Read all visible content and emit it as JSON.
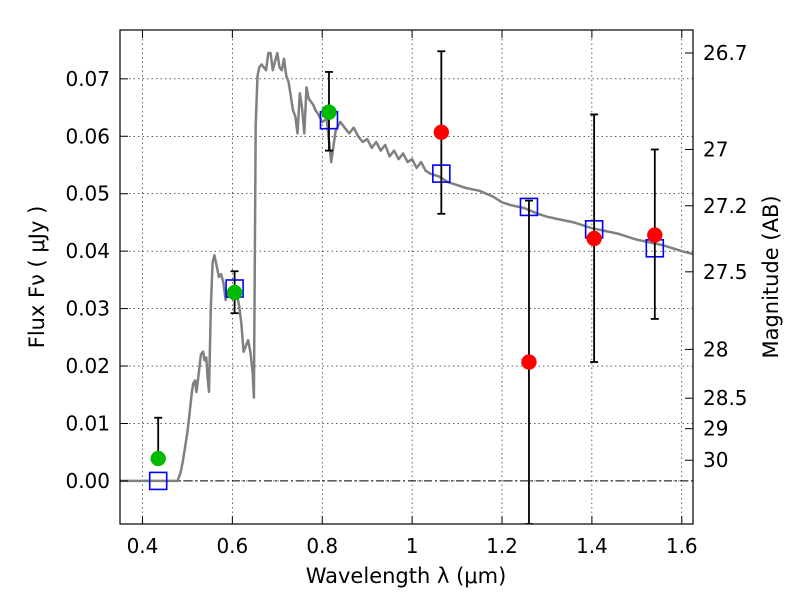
{
  "chart_data": {
    "type": "scatter",
    "xlabel": "Wavelength  λ (μm)",
    "ylabel": "Flux  Fν  ( μJy )",
    "ylabel_right": "Magnitude (AB)",
    "xlim": [
      0.35,
      1.625
    ],
    "ylim": [
      -0.0075,
      0.0785
    ],
    "grid": true,
    "x_ticks": [
      0.4,
      0.6,
      0.8,
      1.0,
      1.2,
      1.4,
      1.6
    ],
    "x_tick_labels": [
      "0.4",
      "0.6",
      "0.8",
      "1",
      "1.2",
      "1.4",
      "1.6"
    ],
    "y_ticks": [
      0.0,
      0.01,
      0.02,
      0.03,
      0.04,
      0.05,
      0.06,
      0.07
    ],
    "y_tick_labels": [
      "0.00",
      "0.01",
      "0.02",
      "0.03",
      "0.04",
      "0.05",
      "0.06",
      "0.07"
    ],
    "right_ticks": [
      {
        "label": "26.7",
        "flux": 0.0745
      },
      {
        "label": "27",
        "flux": 0.0577
      },
      {
        "label": "27.2",
        "flux": 0.0479
      },
      {
        "label": "27.5",
        "flux": 0.0364
      },
      {
        "label": "28",
        "flux": 0.0229
      },
      {
        "label": "28.5",
        "flux": 0.0144
      },
      {
        "label": "29",
        "flux": 0.0091
      },
      {
        "label": "30",
        "flux": 0.0036
      }
    ],
    "colors": {
      "sed": "#808080",
      "observed_detection": "#00bb00",
      "observed_other": "#ff0000",
      "model_square": "#0000ff",
      "errorbar": "#000000"
    },
    "series": [
      {
        "kind": "line",
        "x": [
          0.35,
          0.478,
          0.485,
          0.49,
          0.495,
          0.5,
          0.505,
          0.51,
          0.513,
          0.517,
          0.52,
          0.525,
          0.53,
          0.535,
          0.538,
          0.542,
          0.545,
          0.548,
          0.552,
          0.556,
          0.56,
          0.565,
          0.57,
          0.575,
          0.58,
          0.585,
          0.59,
          0.595,
          0.6,
          0.605,
          0.61,
          0.615,
          0.62,
          0.625,
          0.63,
          0.635,
          0.64,
          0.645,
          0.648,
          0.652,
          0.656,
          0.66,
          0.665,
          0.67,
          0.675,
          0.68,
          0.685,
          0.69,
          0.695,
          0.7,
          0.705,
          0.71,
          0.715,
          0.72,
          0.725,
          0.73,
          0.735,
          0.74,
          0.745,
          0.75,
          0.755,
          0.76,
          0.765,
          0.77,
          0.775,
          0.78,
          0.785,
          0.79,
          0.8,
          0.81,
          0.82,
          0.83,
          0.84,
          0.85,
          0.86,
          0.87,
          0.88,
          0.89,
          0.9,
          0.91,
          0.92,
          0.93,
          0.94,
          0.95,
          0.96,
          0.97,
          0.98,
          0.99,
          1.0,
          1.01,
          1.02,
          1.03,
          1.04,
          1.06,
          1.08,
          1.1,
          1.12,
          1.15,
          1.18,
          1.2,
          1.22,
          1.25,
          1.28,
          1.3,
          1.33,
          1.36,
          1.38,
          1.4,
          1.43,
          1.46,
          1.48,
          1.5,
          1.53,
          1.56,
          1.58,
          1.6,
          1.625
        ],
        "y": [
          0.0,
          0.0,
          0.0015,
          0.0035,
          0.006,
          0.0085,
          0.012,
          0.0155,
          0.017,
          0.0175,
          0.0155,
          0.0185,
          0.022,
          0.0225,
          0.021,
          0.0215,
          0.018,
          0.0155,
          0.03,
          0.038,
          0.0393,
          0.0375,
          0.0355,
          0.036,
          0.0345,
          0.0315,
          0.033,
          0.0325,
          0.0335,
          0.034,
          0.0325,
          0.0305,
          0.0275,
          0.0225,
          0.0235,
          0.0245,
          0.0225,
          0.019,
          0.0145,
          0.062,
          0.0705,
          0.072,
          0.0725,
          0.072,
          0.0715,
          0.0745,
          0.0745,
          0.0715,
          0.073,
          0.0745,
          0.072,
          0.0715,
          0.0735,
          0.0705,
          0.0695,
          0.067,
          0.0645,
          0.0635,
          0.0605,
          0.0675,
          0.065,
          0.0605,
          0.0685,
          0.0665,
          0.066,
          0.0655,
          0.0645,
          0.064,
          0.0625,
          0.063,
          0.0555,
          0.061,
          0.0625,
          0.0615,
          0.0605,
          0.0615,
          0.06,
          0.059,
          0.0595,
          0.058,
          0.059,
          0.0575,
          0.0585,
          0.0565,
          0.0575,
          0.056,
          0.057,
          0.0555,
          0.056,
          0.0545,
          0.0555,
          0.054,
          0.0535,
          0.053,
          0.052,
          0.0515,
          0.051,
          0.0505,
          0.0495,
          0.0485,
          0.048,
          0.0475,
          0.0465,
          0.046,
          0.0455,
          0.045,
          0.0445,
          0.044,
          0.0435,
          0.043,
          0.0425,
          0.042,
          0.0415,
          0.041,
          0.0405,
          0.04,
          0.0395
        ]
      },
      {
        "kind": "model_squares",
        "x": [
          0.435,
          0.605,
          0.815,
          1.065,
          1.26,
          1.405,
          1.54
        ],
        "y": [
          0.0,
          0.0335,
          0.0628,
          0.0535,
          0.0477,
          0.0438,
          0.0405
        ]
      },
      {
        "kind": "observed",
        "points": [
          {
            "x": 0.435,
            "y": 0.0039,
            "err_low": 0.003,
            "err_high": 0.011,
            "color": "#00bb00"
          },
          {
            "x": 0.605,
            "y": 0.0328,
            "err_low": 0.0292,
            "err_high": 0.0365,
            "color": "#00bb00"
          },
          {
            "x": 0.815,
            "y": 0.0642,
            "err_low": 0.0575,
            "err_high": 0.0712,
            "color": "#00bb00"
          },
          {
            "x": 1.065,
            "y": 0.0607,
            "err_low": 0.0465,
            "err_high": 0.0748,
            "color": "#ff0000"
          },
          {
            "x": 1.26,
            "y": 0.0207,
            "err_low": -0.0075,
            "err_high": 0.0488,
            "color": "#ff0000"
          },
          {
            "x": 1.405,
            "y": 0.0422,
            "err_low": 0.0207,
            "err_high": 0.0638,
            "color": "#ff0000"
          },
          {
            "x": 1.54,
            "y": 0.0428,
            "err_low": 0.0282,
            "err_high": 0.0577,
            "color": "#ff0000"
          }
        ]
      }
    ]
  }
}
